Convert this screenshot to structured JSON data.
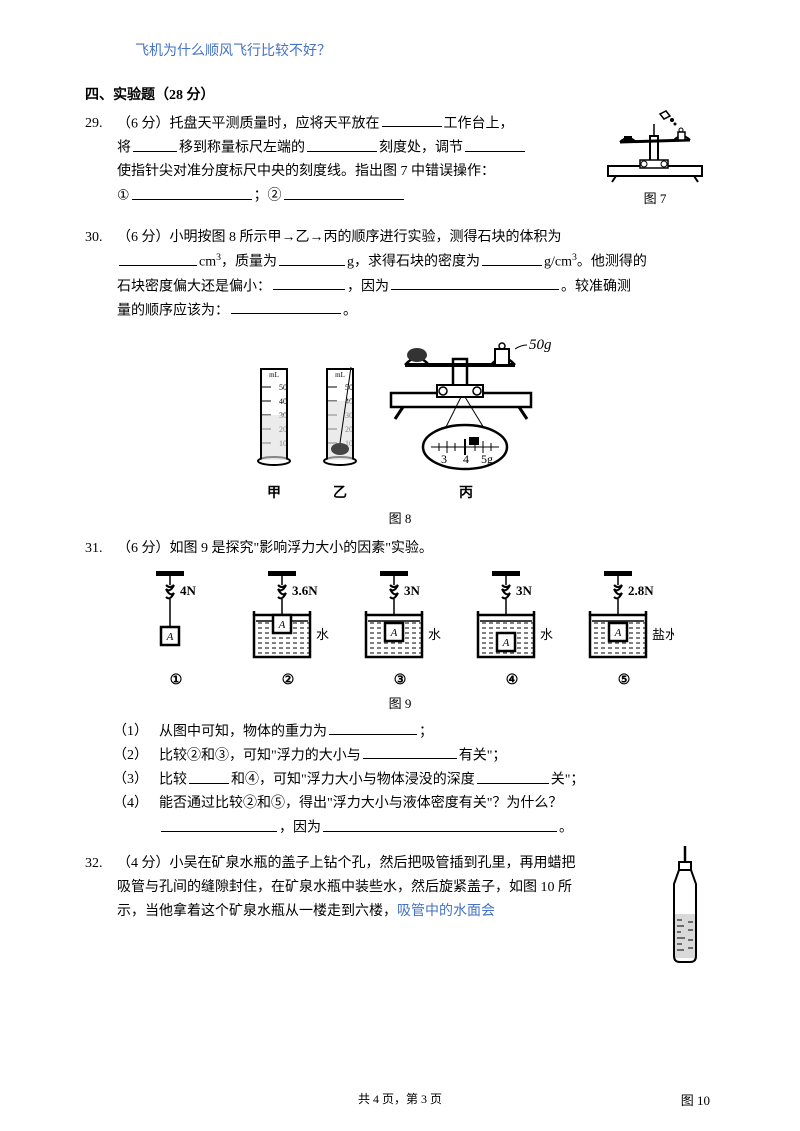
{
  "top_blue": "飞机为什么顺风飞行比较不好？",
  "section4": {
    "title": "四、实验题（28 分）",
    "title_color": "#000000",
    "font_size": 14
  },
  "q29": {
    "num": "29.",
    "prefix": "（6 分）托盘天平测质量时，应将天平放在",
    "t2": "工作台上，",
    "t3": "将",
    "t4": "移到称量标尺左端的",
    "t5": "刻度处，调节",
    "t6": "使指针尖对准分度标尺中央的刻度线。指出图 7 中错误操作：",
    "t7": "①",
    "t8": "；②",
    "fig_label": "图 7",
    "blank_widths": {
      "b1": 60,
      "b2": 44,
      "b3": 70,
      "b4": 60,
      "b5": 120,
      "b6": 120
    }
  },
  "q30": {
    "num": "30.",
    "t1": "（6 分）小明按图 8 所示甲→乙→丙的顺序进行实验，测得石块的体积为",
    "t2": "cm",
    "sup": "3",
    "t3": "，质量为",
    "t4": "g，求得石块的密度为",
    "t5": "g/cm",
    "t6": "。他测得的",
    "t7": "石块密度偏大还是偏小：",
    "t8": "，因为",
    "t9": "。较准确测",
    "t10": "量的顺序应该为：",
    "t11": "。",
    "fig_label": "图 8",
    "captions": {
      "jia": "甲",
      "yi": "乙",
      "bing": "丙"
    },
    "balance_text": "50g",
    "scale_nums": [
      "3",
      "4",
      "5g"
    ],
    "cyl_marks": [
      "50",
      "40",
      "30",
      "20",
      "10"
    ],
    "blank_widths": {
      "b1": 78,
      "b2": 66,
      "b3": 60,
      "b4": 72,
      "b5": 168,
      "b6": 110
    }
  },
  "q31": {
    "num": "31.",
    "t1": "（6 分）如图 9 是探究\"影响浮力大小的因素\"实验。",
    "springs": [
      {
        "val": "4N",
        "liquid": "",
        "num": "①"
      },
      {
        "val": "3.6N",
        "liquid": "水",
        "num": "②"
      },
      {
        "val": "3N",
        "liquid": "水",
        "num": "③"
      },
      {
        "val": "3N",
        "liquid": "水",
        "num": "④"
      },
      {
        "val": "2.8N",
        "liquid": "盐水",
        "num": "⑤"
      }
    ],
    "block": "A",
    "fig_label": "图 9",
    "subs": [
      {
        "n": "（1）",
        "t": "从图中可知，物体的重力为",
        "after": "；",
        "bw": 88
      },
      {
        "n": "（2）",
        "t": "比较②和③，可知\"浮力的大小与",
        "after": "有关\"；",
        "bw": 94
      },
      {
        "n": "（3）",
        "t1": "比较",
        "t2": "和④，可知\"浮力大小与物体浸没的深度",
        "after": "关\"；",
        "bw1": 40,
        "bw2": 72
      },
      {
        "n": "（4）",
        "t": "能否通过比较②和⑤，得出\"浮力大小与液体密度有关\"？为什么？",
        "line2a": "",
        "line2b": "，因为",
        "line2c": "。",
        "bw1": 116,
        "bw2": 234
      }
    ]
  },
  "q32": {
    "num": "32.",
    "t1": "（4 分）小吴在矿泉水瓶的盖子上钻个孔，然后把吸管插到孔里，再用蜡把",
    "t2": "吸管与孔间的缝隙封住，在矿泉水瓶中装些水，然后旋紧盖子，如图 10 所",
    "t3": "示，当他拿着这个矿泉水瓶从一楼走到六楼，",
    "t3_blue": "吸管中的水面会",
    "fig_label": "图 10"
  },
  "footer": "共 4 页，第 3 页",
  "colors": {
    "text": "#000000",
    "blue": "#4472c4",
    "background": "#ffffff"
  }
}
